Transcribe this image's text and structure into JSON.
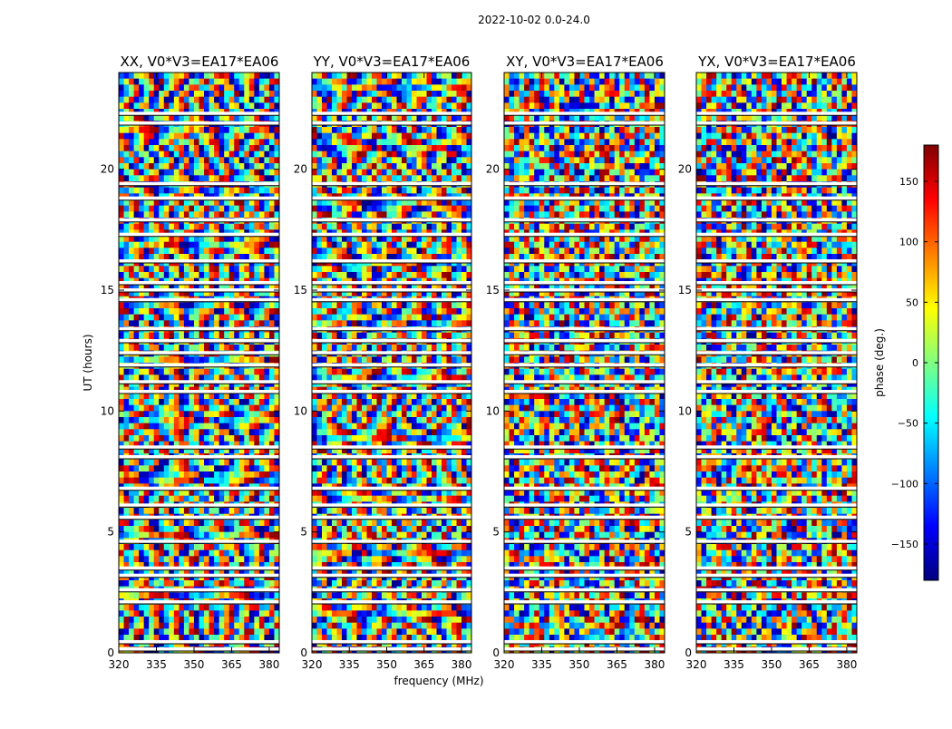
{
  "suptitle": "2022-10-02 0.0-24.0",
  "chart_data": [
    {
      "type": "heatmap",
      "title": "XX, V0*V3=EA17*EA06",
      "xlabel": "",
      "ylabel": "UT (hours)",
      "xlim": [
        320,
        384
      ],
      "ylim": [
        0,
        24
      ],
      "xticks": [
        320,
        335,
        350,
        365,
        380
      ],
      "yticks": [
        0,
        5,
        10,
        15,
        20
      ],
      "value": "phase",
      "clim": [
        -180,
        180
      ]
    },
    {
      "type": "heatmap",
      "title": "YY, V0*V3=EA17*EA06",
      "xlabel": "frequency (MHz)",
      "ylabel": "",
      "xlim": [
        320,
        384
      ],
      "ylim": [
        0,
        24
      ],
      "xticks": [
        320,
        335,
        350,
        365,
        380
      ],
      "yticks": [
        0,
        5,
        10,
        15,
        20
      ],
      "value": "phase",
      "clim": [
        -180,
        180
      ]
    },
    {
      "type": "heatmap",
      "title": "XY, V0*V3=EA17*EA06",
      "xlabel": "",
      "ylabel": "",
      "xlim": [
        320,
        384
      ],
      "ylim": [
        0,
        24
      ],
      "xticks": [
        320,
        335,
        350,
        365,
        380
      ],
      "yticks": [
        0,
        5,
        10,
        15,
        20
      ],
      "value": "phase",
      "clim": [
        -180,
        180
      ]
    },
    {
      "type": "heatmap",
      "title": "YX, V0*V3=EA17*EA06",
      "xlabel": "",
      "ylabel": "",
      "xlim": [
        320,
        384
      ],
      "ylim": [
        0,
        24
      ],
      "xticks": [
        320,
        335,
        350,
        365,
        380
      ],
      "yticks": [
        0,
        5,
        10,
        15,
        20
      ],
      "value": "phase",
      "clim": [
        -180,
        180
      ]
    }
  ],
  "colorbar": {
    "label": "phase (deg.)",
    "range": [
      -180,
      180
    ],
    "ticks": [
      150,
      100,
      50,
      0,
      -50,
      -100,
      -150
    ],
    "tick_labels": [
      "150",
      "100",
      "50",
      "0",
      "−50",
      "−100",
      "−150"
    ],
    "colormap": [
      "#000080",
      "#0000ff",
      "#0080ff",
      "#00ffff",
      "#80ff80",
      "#ffff00",
      "#ff8000",
      "#ff0000",
      "#800000"
    ]
  },
  "flagged_gaps_ut": [
    0.15,
    0.45,
    2.1,
    2.6,
    3.2,
    3.5,
    4.6,
    5.6,
    6.1,
    6.8,
    8.1,
    8.5,
    10.8,
    11.2,
    11.9,
    12.4,
    12.9,
    13.4,
    14.6,
    15.0,
    15.3,
    16.2,
    17.3,
    17.9,
    18.8,
    19.4,
    21.9,
    22.3
  ]
}
